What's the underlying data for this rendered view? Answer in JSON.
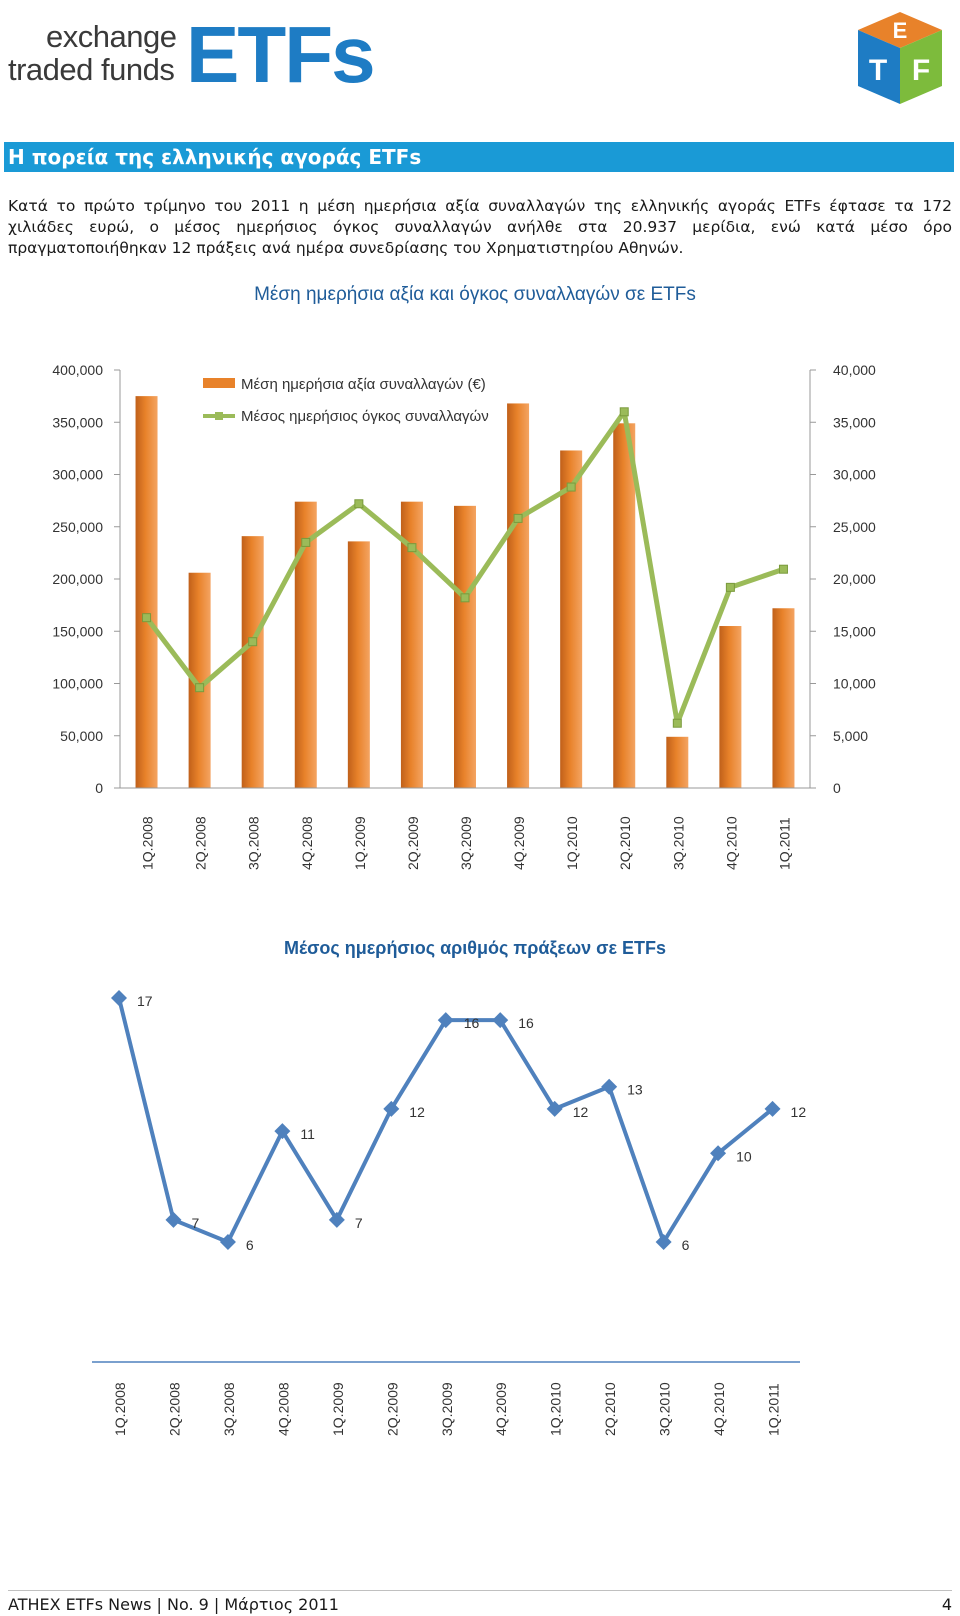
{
  "header": {
    "logo_line1": "exchange",
    "logo_line2": "traded funds",
    "logo_etfs": "ETFs",
    "cube_letters": [
      "E",
      "T",
      "F"
    ]
  },
  "section_title": "Η πορεία της ελληνικής αγοράς ETFs",
  "paragraph": "Κατά το πρώτο τρίμηνο του 2011 η μέση ημερήσια αξία συναλλαγών της ελληνικής αγοράς ETFs έφτασε τα 172 χιλιάδες ευρώ, ο μέσος ημερήσιος όγκος συναλλαγών ανήλθε στα 20.937 μερίδια, ενώ κατά μέσο όρο πραγματοποιήθηκαν 12 πράξεις ανά ημέρα συνεδρίασης του Χρηματιστηρίου Αθηνών.",
  "colors": {
    "bar": "#e8822a",
    "line_green": "#9bbb59",
    "line_blue": "#4f81bd",
    "title_blue": "#1f5c99",
    "header_bar": "#1a9ad6"
  },
  "chart_data": [
    {
      "type": "bar",
      "title": "Μέση ημερήσια αξία και όγκος συναλλαγών σε ETFs",
      "categories": [
        "1Q.2008",
        "2Q.2008",
        "3Q.2008",
        "4Q.2008",
        "1Q.2009",
        "2Q.2009",
        "3Q.2009",
        "4Q.2009",
        "1Q.2010",
        "2Q.2010",
        "3Q.2010",
        "4Q.2010",
        "1Q.2011"
      ],
      "series": [
        {
          "name": "Μέση ημερήσια αξία συναλλαγών (€)",
          "type": "bar",
          "axis": "left",
          "values": [
            375000,
            206000,
            241000,
            274000,
            236000,
            274000,
            270000,
            368000,
            323000,
            349000,
            49000,
            155000,
            172000
          ]
        },
        {
          "name": "Μέσος ημερήσιος όγκος συναλλαγών",
          "type": "line",
          "axis": "right",
          "values": [
            16300,
            9600,
            14000,
            23500,
            27200,
            23000,
            18200,
            25800,
            28800,
            36000,
            6200,
            19200,
            20937
          ]
        }
      ],
      "left_axis": {
        "ylim": [
          0,
          400000
        ],
        "ticks": [
          "0",
          "50,000",
          "100,000",
          "150,000",
          "200,000",
          "250,000",
          "300,000",
          "350,000",
          "400,000"
        ]
      },
      "right_axis": {
        "ylim": [
          0,
          40000
        ],
        "ticks": [
          "0",
          "5,000",
          "10,000",
          "15,000",
          "20,000",
          "25,000",
          "30,000",
          "35,000",
          "40,000"
        ]
      },
      "legend_position": "top-left"
    },
    {
      "type": "line",
      "title": "Μέσος ημερήσιος αριθμός πράξεων σε ETFs",
      "categories": [
        "1Q.2008",
        "2Q.2008",
        "3Q.2008",
        "4Q.2008",
        "1Q.2009",
        "2Q.2009",
        "3Q.2009",
        "4Q.2009",
        "1Q.2010",
        "2Q.2010",
        "3Q.2010",
        "4Q.2010",
        "1Q.2011"
      ],
      "values": [
        17,
        7,
        6,
        11,
        7,
        12,
        16,
        16,
        12,
        13,
        6,
        10,
        12
      ],
      "data_labels": [
        "17",
        "7",
        "6",
        "11",
        "7",
        "12",
        "16",
        "16",
        "12",
        "13",
        "6",
        "10",
        "12"
      ]
    }
  ],
  "footer": {
    "left": "ATHEX ETFs News | No. 9 | Μάρτιος 2011",
    "page": "4"
  }
}
